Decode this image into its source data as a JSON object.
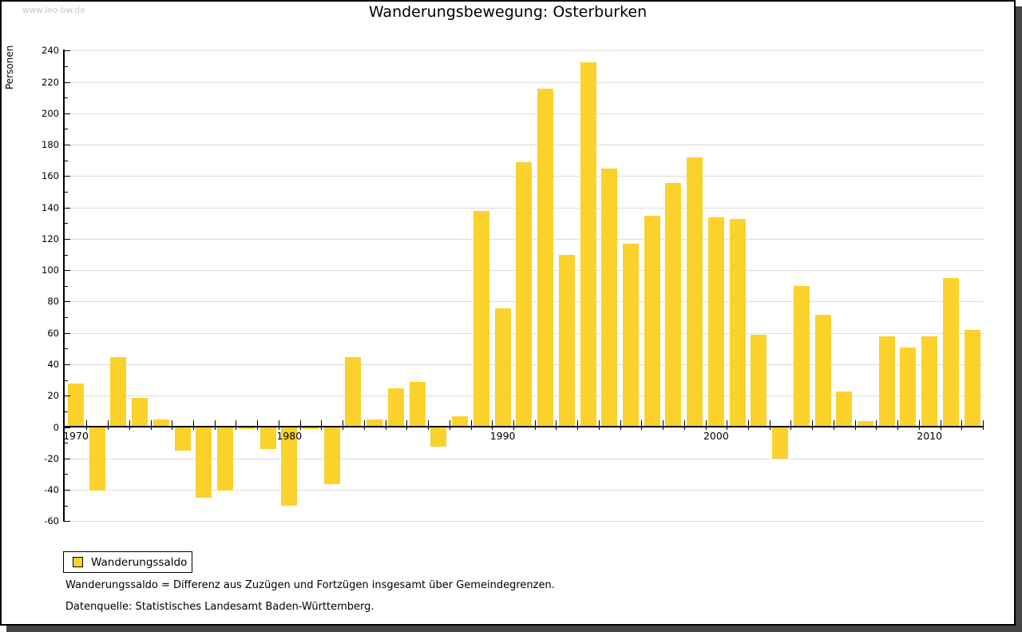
{
  "watermark": "www.leo-bw.de",
  "header": {
    "title": "Wanderungsbewegung: Osterburken"
  },
  "legend": {
    "label": "Wanderungssaldo",
    "swatch_color": "#FBD22C"
  },
  "footnotes": {
    "definition": "Wanderungssaldo = Differenz aus Zuzügen und Fortzügen insgesamt über Gemeindegrenzen.",
    "source": "Datenquelle: Statistisches Landesamt Baden-Württemberg."
  },
  "colors": {
    "bar": "#FBD22C",
    "gridline": "#DDDDDD",
    "axis": "#000000",
    "watermark": "#C9C9C9",
    "frame_shadow": "#454545"
  },
  "chart_data": {
    "type": "bar",
    "title": "Wanderungsbewegung: Osterburken",
    "xlabel": "",
    "ylabel": "Personen",
    "ylim": [
      -60,
      240
    ],
    "ytick_step": 20,
    "ytick_minor_step": 10,
    "grid": true,
    "legend_position": "bottom-left",
    "xtick_labels": [
      1970,
      1980,
      1990,
      2000,
      2010
    ],
    "x": [
      1970,
      1971,
      1972,
      1973,
      1974,
      1975,
      1976,
      1977,
      1978,
      1979,
      1980,
      1981,
      1982,
      1983,
      1984,
      1985,
      1986,
      1987,
      1988,
      1989,
      1990,
      1991,
      1992,
      1993,
      1994,
      1995,
      1996,
      1997,
      1998,
      1999,
      2000,
      2001,
      2002,
      2003,
      2004,
      2005,
      2006,
      2007,
      2008,
      2009,
      2010,
      2011,
      2012
    ],
    "series": [
      {
        "name": "Wanderungssaldo",
        "values": [
          27,
          -40,
          44,
          18,
          4,
          -15,
          -45,
          -40,
          -1,
          -14,
          -50,
          -1,
          -36,
          44,
          4,
          24,
          28,
          -12,
          6,
          137,
          75,
          168,
          215,
          109,
          232,
          164,
          116,
          134,
          155,
          171,
          133,
          132,
          58,
          -20,
          89,
          71,
          22,
          3,
          57,
          50,
          57,
          94,
          61
        ]
      }
    ]
  }
}
